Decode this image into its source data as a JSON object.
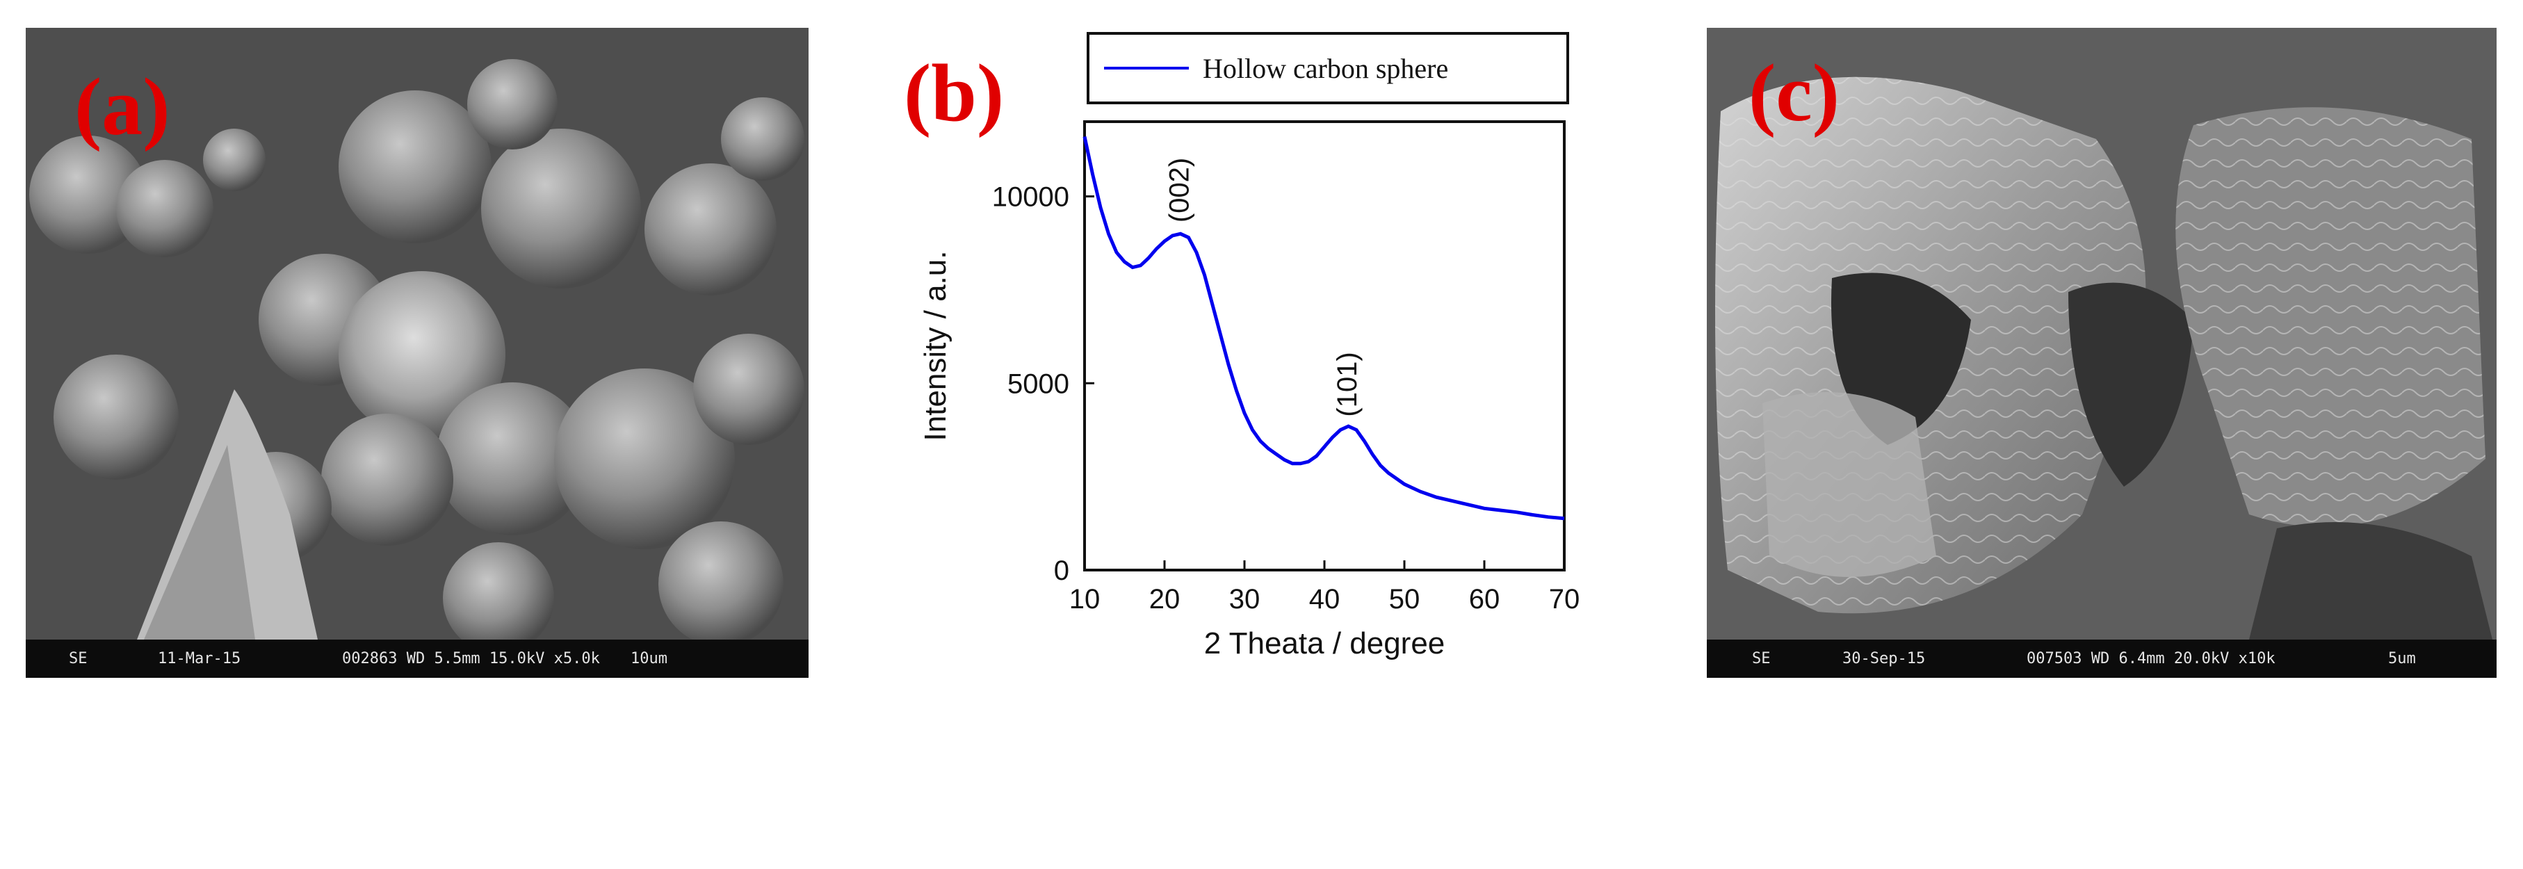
{
  "panels": {
    "a": {
      "label": "(a)",
      "info_bar": {
        "mode": "SE",
        "date": "11-Mar-15",
        "params": "002863 WD 5.5mm 15.0kV x5.0k",
        "scale": "10um"
      }
    },
    "c": {
      "label": "(c)",
      "info_bar": {
        "mode": "SE",
        "date": "30-Sep-15",
        "params": "007503 WD 6.4mm 20.0kV x10k",
        "scale": "5um"
      }
    },
    "b": {
      "label": "(b)"
    }
  },
  "colors": {
    "label_red": "#e00000",
    "series_blue": "#0000ee",
    "sem_gray": "#5a5a5a"
  },
  "chart_data": {
    "type": "line",
    "title": "",
    "xlabel": "2 Theata / degree",
    "ylabel": "Intensity / a.u.",
    "xlim": [
      10,
      70
    ],
    "ylim": [
      0,
      12000
    ],
    "xticks": [
      10,
      20,
      30,
      40,
      50,
      60,
      70
    ],
    "yticks": [
      0,
      5000,
      10000
    ],
    "legend_position": "top",
    "grid": false,
    "series": [
      {
        "name": "Hollow carbon sphere",
        "x": [
          10,
          11,
          12,
          13,
          14,
          15,
          16,
          17,
          18,
          19,
          20,
          21,
          22,
          23,
          24,
          25,
          26,
          27,
          28,
          29,
          30,
          31,
          32,
          33,
          34,
          35,
          36,
          37,
          38,
          39,
          40,
          41,
          42,
          43,
          44,
          45,
          46,
          47,
          48,
          49,
          50,
          52,
          54,
          56,
          58,
          60,
          62,
          64,
          66,
          68,
          70
        ],
        "y": [
          11600,
          10600,
          9700,
          9000,
          8500,
          8250,
          8100,
          8150,
          8350,
          8600,
          8800,
          8950,
          9000,
          8900,
          8500,
          7900,
          7100,
          6300,
          5500,
          4800,
          4200,
          3750,
          3450,
          3250,
          3100,
          2950,
          2850,
          2850,
          2900,
          3050,
          3300,
          3550,
          3750,
          3850,
          3750,
          3450,
          3100,
          2800,
          2600,
          2450,
          2300,
          2100,
          1950,
          1850,
          1750,
          1650,
          1600,
          1550,
          1480,
          1420,
          1380
        ]
      }
    ],
    "annotations": [
      {
        "text": "(002)",
        "x": 23,
        "y": 9300
      },
      {
        "text": "(101)",
        "x": 44,
        "y": 4100
      }
    ]
  }
}
